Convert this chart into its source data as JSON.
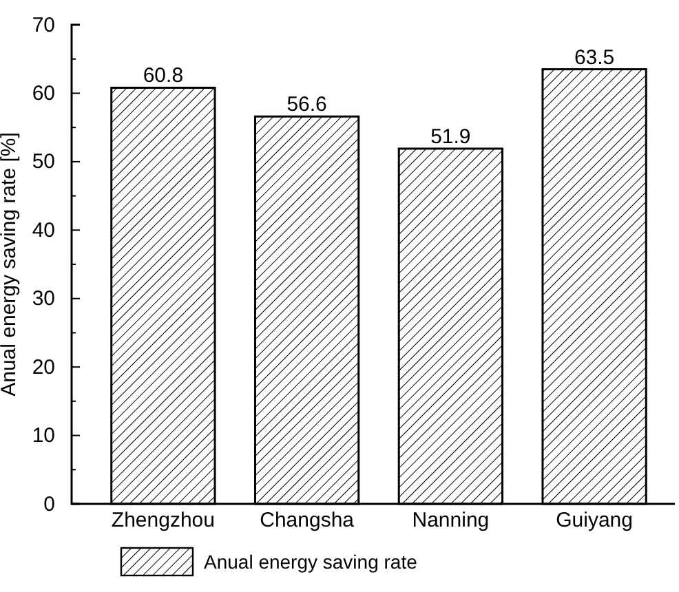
{
  "chart_data": {
    "type": "bar",
    "ylabel": "Anual energy saving rate [%]",
    "categories": [
      "Zhengzhou",
      "Changsha",
      "Nanning",
      "Guiyang"
    ],
    "series": [
      {
        "name": "Anual energy saving rate",
        "color": "#000000",
        "values": [
          60.8,
          56.6,
          51.9,
          63.5
        ]
      }
    ],
    "ylim": [
      0,
      70
    ],
    "yticks": [
      0,
      10,
      20,
      30,
      40,
      50,
      60,
      70
    ],
    "data_labels": true,
    "legend": "bottom",
    "grid": false
  }
}
